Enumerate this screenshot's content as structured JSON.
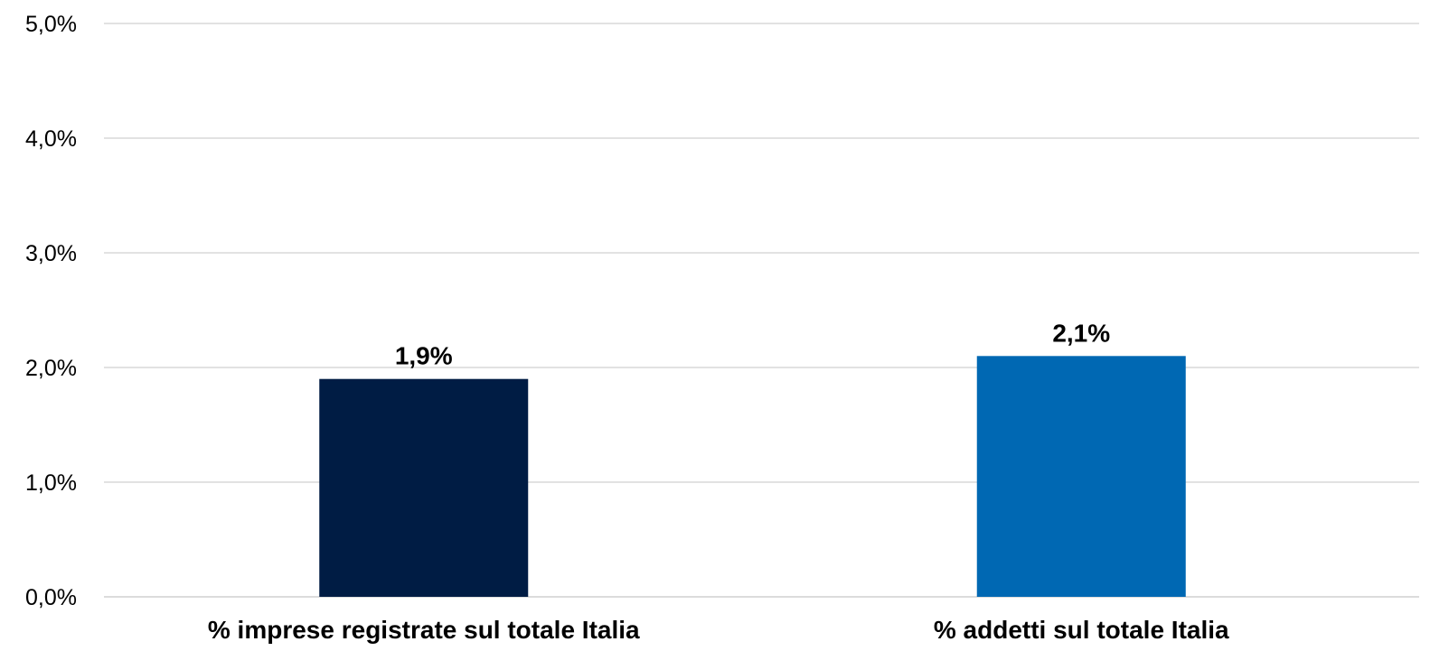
{
  "chart_data": {
    "type": "bar",
    "categories": [
      "% imprese registrate sul totale Italia",
      "% addetti sul totale Italia"
    ],
    "values": [
      1.9,
      2.1
    ],
    "data_labels": [
      "1,9%",
      "2,1%"
    ],
    "colors": [
      "#001c44",
      "#0068b3"
    ],
    "ylim": [
      0,
      5
    ],
    "yticks": [
      0,
      1,
      2,
      3,
      4,
      5
    ],
    "ytick_labels": [
      "0,0%",
      "1,0%",
      "2,0%",
      "3,0%",
      "4,0%",
      "5,0%"
    ],
    "grid": true,
    "legend": "none"
  }
}
